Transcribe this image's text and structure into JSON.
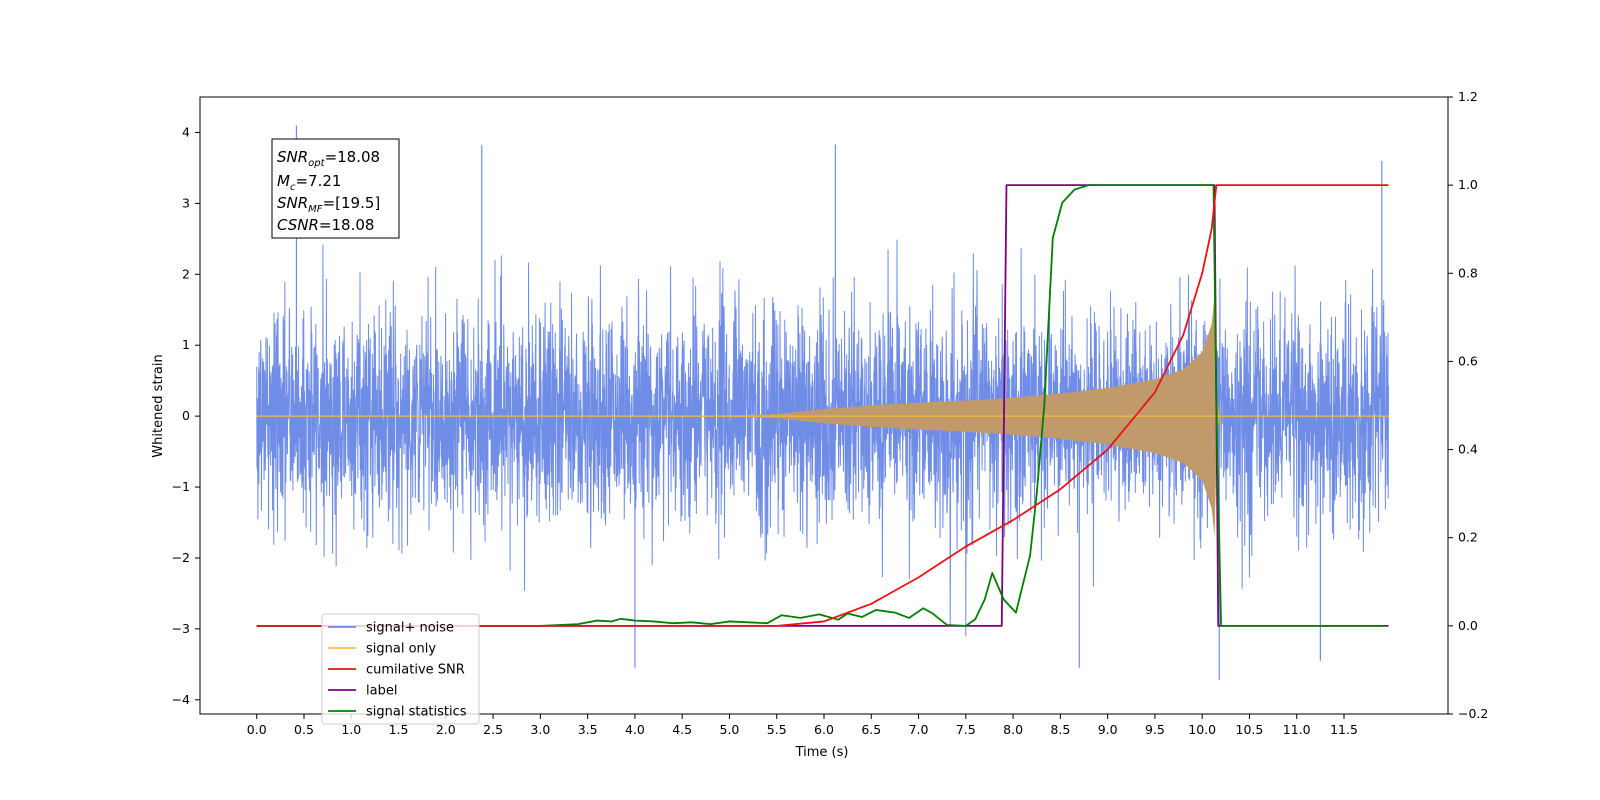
{
  "chart_data": {
    "type": "line",
    "xlabel": "Time (s)",
    "ylabel": "Whitened strain",
    "xlim": [
      -0.6,
      12.6
    ],
    "ylim": [
      -4.2,
      4.5
    ],
    "y2lim": [
      -0.2,
      1.2
    ],
    "grid": false,
    "legend_position": "lower-left",
    "x_ticks": [
      "0.0",
      "0.5",
      "1.0",
      "1.5",
      "2.0",
      "2.5",
      "3.0",
      "3.5",
      "4.0",
      "4.5",
      "5.0",
      "5.5",
      "6.0",
      "6.5",
      "7.0",
      "7.5",
      "8.0",
      "8.5",
      "9.0",
      "9.5",
      "10.0",
      "10.5",
      "11.0",
      "11.5"
    ],
    "y_ticks": [
      "4",
      "3",
      "2",
      "1",
      "0",
      "−1",
      "−2",
      "−3",
      "−4"
    ],
    "y2_ticks": [
      "1.2",
      "1.0",
      "0.8",
      "0.6",
      "0.4",
      "0.2",
      "0.0",
      "−0.2"
    ],
    "stats_box": {
      "snr_opt": "=18.08",
      "mc": "=7.21",
      "snr_mf": "=[19.5]",
      "csnr": "=18.08"
    },
    "colors": {
      "noise": "#6f8ce6",
      "signal": "#f5b942",
      "signal_fill": "#c19a6b",
      "snr": "#ee1111",
      "label": "#7f007f",
      "stats": "#008000"
    },
    "series": [
      {
        "name": "signal+ noise",
        "axis": "left",
        "description_values": "white Gaussian noise, sigma ~0.75, range about -3.7 to 4.1",
        "peaks": [
          [
            0.42,
            4.1
          ],
          [
            2.38,
            3.82
          ],
          [
            6.12,
            3.83
          ],
          [
            4.0,
            -3.55
          ],
          [
            8.7,
            -3.55
          ],
          [
            10.18,
            -3.72
          ],
          [
            11.25,
            -3.45
          ],
          [
            11.9,
            3.6
          ]
        ]
      },
      {
        "name": "signal only",
        "axis": "left",
        "envelope": [
          [
            0.0,
            0.0
          ],
          [
            5.0,
            0.01
          ],
          [
            5.5,
            0.03
          ],
          [
            6.0,
            0.1
          ],
          [
            6.5,
            0.15
          ],
          [
            7.0,
            0.19
          ],
          [
            7.5,
            0.22
          ],
          [
            8.0,
            0.26
          ],
          [
            8.5,
            0.32
          ],
          [
            9.0,
            0.4
          ],
          [
            9.5,
            0.52
          ],
          [
            9.8,
            0.66
          ],
          [
            10.0,
            0.9
          ],
          [
            10.1,
            1.3
          ],
          [
            10.13,
            1.7
          ],
          [
            10.16,
            0.2
          ],
          [
            10.2,
            0.0
          ],
          [
            11.97,
            0.0
          ]
        ]
      },
      {
        "name": "cumilative SNR",
        "axis": "right",
        "points": [
          [
            0.0,
            0.0
          ],
          [
            5.5,
            0.0
          ],
          [
            6.0,
            0.01
          ],
          [
            6.5,
            0.05
          ],
          [
            7.0,
            0.11
          ],
          [
            7.5,
            0.18
          ],
          [
            8.0,
            0.24
          ],
          [
            8.5,
            0.31
          ],
          [
            9.0,
            0.4
          ],
          [
            9.5,
            0.53
          ],
          [
            9.8,
            0.66
          ],
          [
            10.0,
            0.8
          ],
          [
            10.1,
            0.9
          ],
          [
            10.15,
            1.0
          ],
          [
            11.97,
            1.0
          ]
        ]
      },
      {
        "name": "label",
        "axis": "right",
        "points": [
          [
            0.0,
            0.0
          ],
          [
            7.88,
            0.0
          ],
          [
            7.93,
            1.0
          ],
          [
            10.13,
            1.0
          ],
          [
            10.17,
            0.0
          ],
          [
            11.97,
            0.0
          ]
        ]
      },
      {
        "name": "signal statistics",
        "axis": "right",
        "points": [
          [
            0.0,
            0.0
          ],
          [
            3.0,
            0.0
          ],
          [
            3.4,
            0.004
          ],
          [
            3.6,
            0.012
          ],
          [
            3.75,
            0.01
          ],
          [
            3.85,
            0.016
          ],
          [
            4.0,
            0.012
          ],
          [
            4.2,
            0.01
          ],
          [
            4.4,
            0.006
          ],
          [
            4.6,
            0.008
          ],
          [
            4.8,
            0.004
          ],
          [
            5.0,
            0.01
          ],
          [
            5.2,
            0.008
          ],
          [
            5.4,
            0.006
          ],
          [
            5.55,
            0.024
          ],
          [
            5.75,
            0.018
          ],
          [
            5.95,
            0.026
          ],
          [
            6.15,
            0.014
          ],
          [
            6.25,
            0.028
          ],
          [
            6.4,
            0.02
          ],
          [
            6.55,
            0.036
          ],
          [
            6.75,
            0.03
          ],
          [
            6.9,
            0.018
          ],
          [
            7.05,
            0.04
          ],
          [
            7.15,
            0.028
          ],
          [
            7.3,
            0.002
          ],
          [
            7.5,
            0.0
          ],
          [
            7.6,
            0.015
          ],
          [
            7.7,
            0.06
          ],
          [
            7.78,
            0.12
          ],
          [
            7.9,
            0.06
          ],
          [
            8.03,
            0.03
          ],
          [
            8.18,
            0.16
          ],
          [
            8.25,
            0.3
          ],
          [
            8.33,
            0.5
          ],
          [
            8.42,
            0.88
          ],
          [
            8.52,
            0.96
          ],
          [
            8.65,
            0.99
          ],
          [
            8.8,
            1.0
          ],
          [
            10.12,
            1.0
          ],
          [
            10.15,
            0.5
          ],
          [
            10.2,
            0.0
          ],
          [
            11.92,
            0.0
          ]
        ]
      }
    ],
    "legend": [
      {
        "label": "signal+ noise",
        "color": "#6f8ce6"
      },
      {
        "label": "signal only",
        "color": "#f5b942"
      },
      {
        "label": "cumilative SNR",
        "color": "#ee1111"
      },
      {
        "label": "label",
        "color": "#7f007f"
      },
      {
        "label": "signal statistics",
        "color": "#008000"
      }
    ]
  }
}
